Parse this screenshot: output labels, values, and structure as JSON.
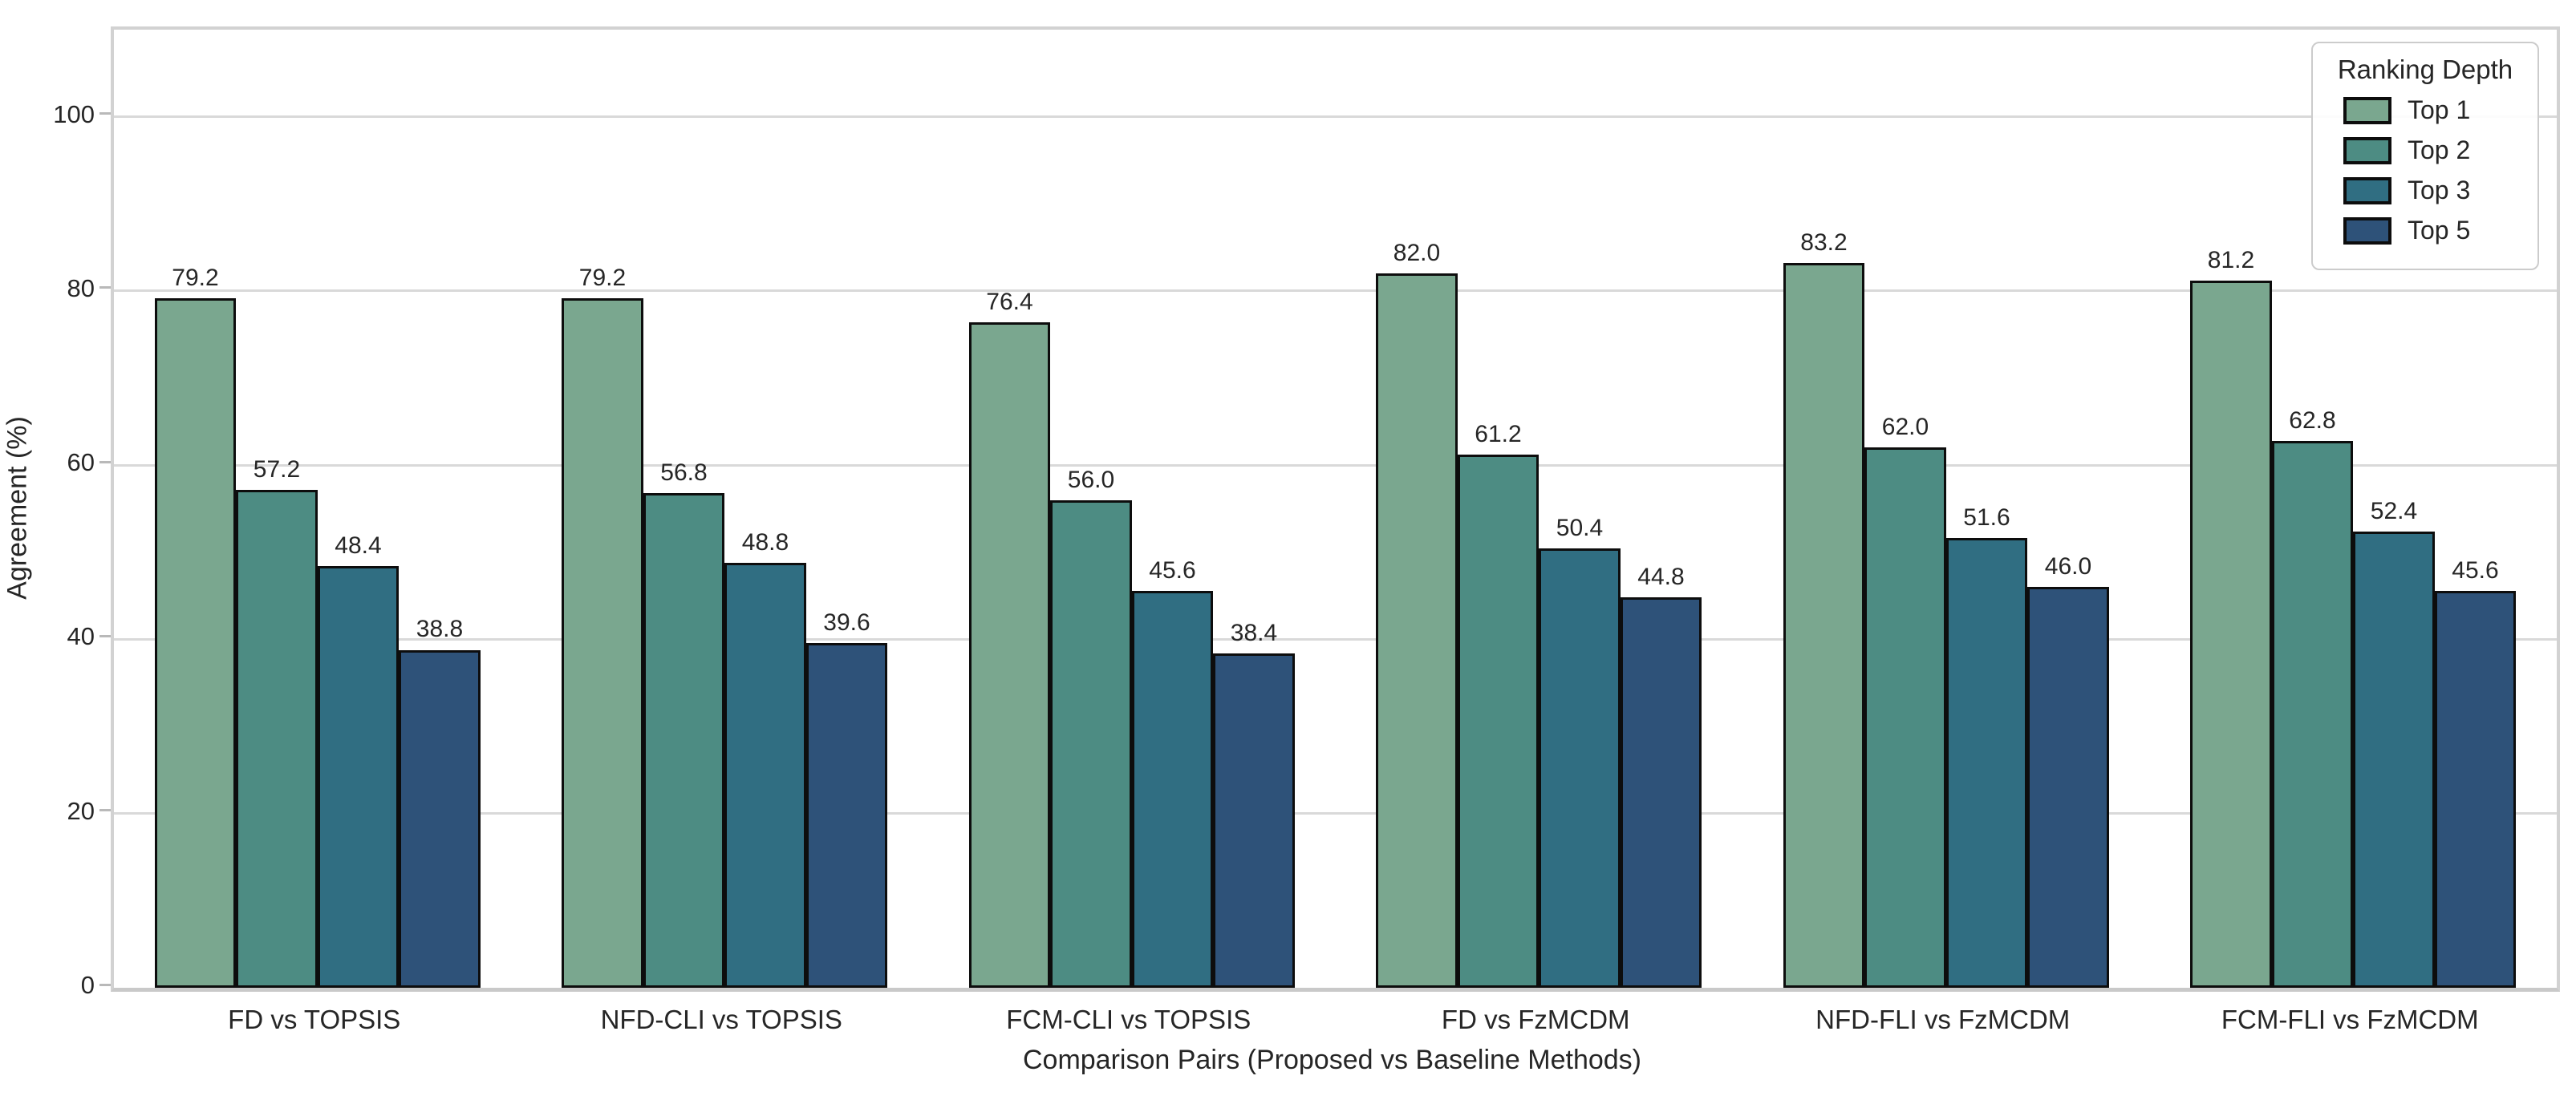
{
  "chart_data": {
    "type": "bar",
    "title": "",
    "xlabel": "Comparison Pairs (Proposed vs Baseline Methods)",
    "ylabel": "Agreement (%)",
    "ylim": [
      0,
      110
    ],
    "yticks": [
      0,
      20,
      40,
      60,
      80,
      100
    ],
    "grid": "horizontal",
    "legend_title": "Ranking Depth",
    "legend_position": "upper right",
    "value_labels": true,
    "value_label_decimals": 1,
    "categories": [
      "FD vs TOPSIS",
      "NFD-CLI vs TOPSIS",
      "FCM-CLI vs TOPSIS",
      "FD vs FzMCDM",
      "NFD-FLI vs FzMCDM",
      "FCM-FLI vs FzMCDM"
    ],
    "series": [
      {
        "name": "Top 1",
        "color": "#7aa78f",
        "values": [
          79.2,
          79.2,
          76.4,
          82.0,
          83.2,
          81.2
        ]
      },
      {
        "name": "Top 2",
        "color": "#4d8c83",
        "values": [
          57.2,
          56.8,
          56.0,
          61.2,
          62.0,
          62.8
        ]
      },
      {
        "name": "Top 3",
        "color": "#306e82",
        "values": [
          48.4,
          48.8,
          45.6,
          50.4,
          51.6,
          52.4
        ]
      },
      {
        "name": "Top 5",
        "color": "#2e5279",
        "values": [
          38.8,
          39.6,
          38.4,
          44.8,
          46.0,
          45.6
        ]
      }
    ],
    "colors": {
      "bar_edge": "#0d0d0d",
      "grid": "#d9d9d9",
      "spine": "#d2d2d2",
      "text": "#262626"
    }
  }
}
